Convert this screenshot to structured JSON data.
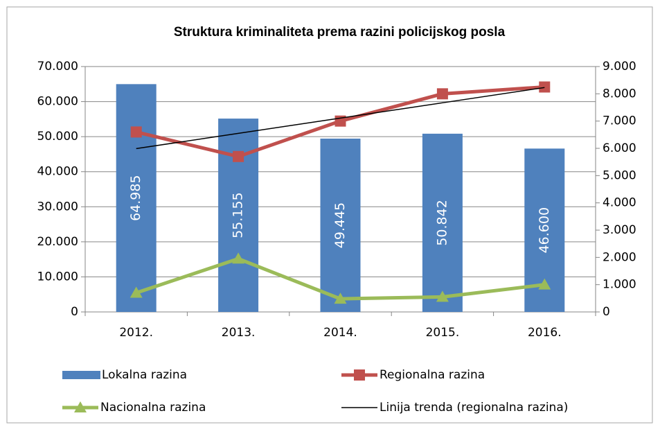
{
  "chart_data": {
    "type": "bar_line",
    "title": "Struktura  kriminaliteta prema razini policijskog posla",
    "categories": [
      "2012.",
      "2013.",
      "2014.",
      "2015.",
      "2016."
    ],
    "series": [
      {
        "name": "Lokalna razina",
        "type": "bar",
        "axis": "y",
        "color": "#4f81bd",
        "values": [
          64985,
          55155,
          49445,
          50842,
          46600
        ],
        "value_labels": [
          "64.985",
          "55.155",
          "49.445",
          "50.842",
          "46.600"
        ]
      },
      {
        "name": "Regionalna razina",
        "type": "line",
        "axis": "y2",
        "color": "#c0504d",
        "marker": "square",
        "values": [
          6600,
          5700,
          7000,
          8000,
          8250
        ]
      },
      {
        "name": "Nacionalna razina",
        "type": "line",
        "axis": "y2",
        "color": "#9bbb59",
        "marker": "triangle",
        "values": [
          700,
          1950,
          480,
          550,
          1000
        ]
      },
      {
        "name": "Linija trenda (regionalna razina)",
        "type": "line",
        "axis": "y2",
        "color": "#000000",
        "values": [
          5990,
          6550,
          7110,
          7670,
          8230
        ]
      }
    ],
    "ylim": [
      0,
      70000
    ],
    "yticks": [
      0,
      {
        "value": 10000,
        "label": "10.000"
      },
      {
        "value": 20000,
        "label": "20.000"
      },
      {
        "value": 30000,
        "label": "30.000"
      },
      {
        "value": 40000,
        "label": "40.000"
      },
      {
        "value": 50000,
        "label": "50.000"
      },
      {
        "value": 60000,
        "label": "60.000"
      },
      {
        "value": 70000,
        "label": "70.000"
      }
    ],
    "y2lim": [
      0,
      9000
    ],
    "y2ticks": [
      0,
      {
        "value": 1000,
        "label": "1.000"
      },
      {
        "value": 2000,
        "label": "2.000"
      },
      {
        "value": 3000,
        "label": "3.000"
      },
      {
        "value": 4000,
        "label": "4.000"
      },
      {
        "value": 5000,
        "label": "5.000"
      },
      {
        "value": 6000,
        "label": "6.000"
      },
      {
        "value": 7000,
        "label": "7.000"
      },
      {
        "value": 8000,
        "label": "8.000"
      },
      {
        "value": 9000,
        "label": "9.000"
      }
    ],
    "grid": true,
    "legend": "bottom"
  }
}
